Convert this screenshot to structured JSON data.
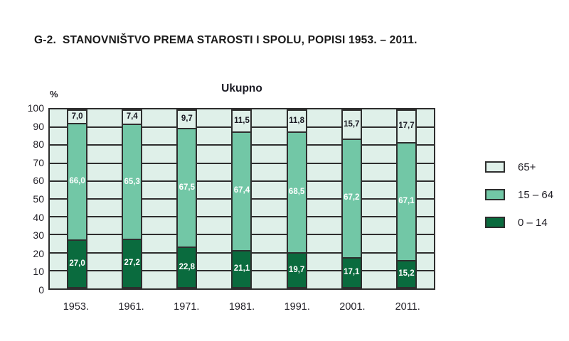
{
  "document": {
    "title": "G-2.  STANOVNIŠTVO PREMA STAROSTI I SPOLU, POPISI 1953. – 2011."
  },
  "chart_data": {
    "type": "bar",
    "stacked": true,
    "title": "Ukupno",
    "ylabel": "%",
    "ylim": [
      0,
      100
    ],
    "ytick_step": 10,
    "grid": true,
    "plot_background": "#dff0e9",
    "grid_color": "#2e2e2e",
    "legend_position": "right",
    "categories": [
      "1953.",
      "1961.",
      "1971.",
      "1981.",
      "1991.",
      "2001.",
      "2011."
    ],
    "series": [
      {
        "name": "0 – 14",
        "color": "#0a6b3e",
        "label_color": "#ffffff",
        "values": [
          27.0,
          27.2,
          22.8,
          21.1,
          19.7,
          17.1,
          15.2
        ],
        "labels": [
          "27,0",
          "27,2",
          "22,8",
          "21,1",
          "19,7",
          "17,1",
          "15,2"
        ]
      },
      {
        "name": "15 – 64",
        "color": "#72c7a6",
        "label_color": "#ffffff",
        "values": [
          66.0,
          65.3,
          67.5,
          67.4,
          68.5,
          67.2,
          67.1
        ],
        "labels": [
          "66,0",
          "65,3",
          "67,5",
          "67,4",
          "68,5",
          "67,2",
          "67,1"
        ]
      },
      {
        "name": "65+",
        "color": "#dff0e9",
        "label_color": "#1b1b24",
        "values": [
          7.0,
          7.4,
          9.7,
          11.5,
          11.8,
          15.7,
          17.7
        ],
        "labels": [
          "7,0",
          "7,4",
          "9,7",
          "11,5",
          "11,8",
          "15,7",
          "17,7"
        ]
      }
    ]
  }
}
